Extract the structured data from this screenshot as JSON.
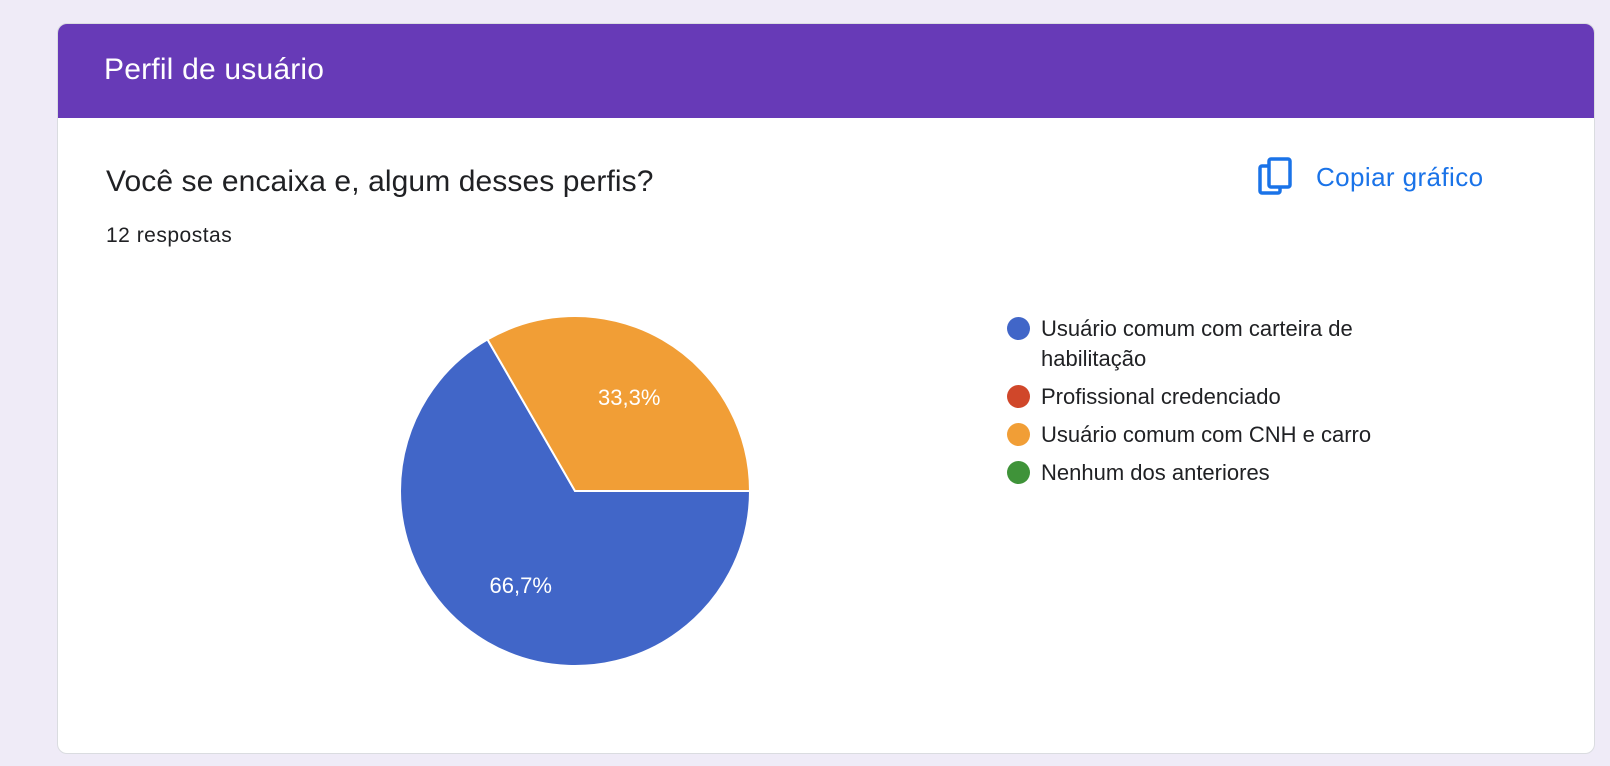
{
  "section": {
    "title": "Perfil de usuário",
    "header_color": "#673ab7"
  },
  "question": {
    "title": "Você se encaixa e, algum desses perfis?",
    "responses": "12 respostas"
  },
  "toolbar": {
    "copy_label": "Copiar gráfico",
    "copy_icon": "copy-icon",
    "accent_color": "#1a73e8"
  },
  "chart_data": {
    "type": "pie",
    "title": "Você se encaixa e, algum desses perfis?",
    "categories": [
      "Usuário comum com carteira de habilitação",
      "Profissional credenciado",
      "Usuário comum com CNH e carro",
      "Nenhum dos anteriores"
    ],
    "values": [
      8,
      0,
      4,
      0
    ],
    "percent_labels": [
      "66,7%",
      "",
      "33,3%",
      ""
    ],
    "colors": [
      "#4166c8",
      "#d0472a",
      "#f19e36",
      "#3f9339"
    ],
    "legend_position": "right"
  }
}
